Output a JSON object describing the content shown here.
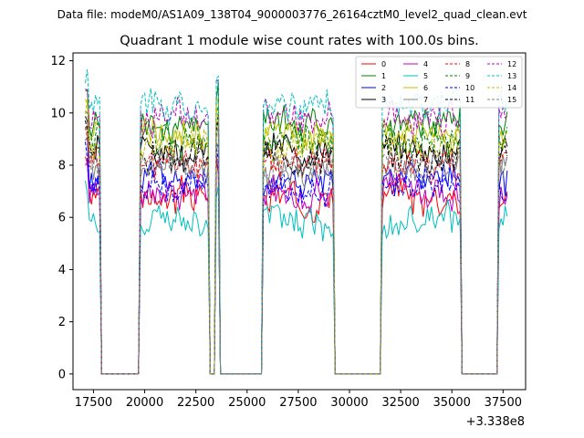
{
  "header": {
    "data_file": "Data file: modeM0/AS1A09_138T04_9000003776_26164cztM0_level2_quad_clean.evt"
  },
  "chart_data": {
    "type": "line",
    "title": "Quadrant 1 module wise count rates with 100.0s bins.",
    "xlabel": "",
    "ylabel": "",
    "x_offset_label": "+3.338e8",
    "xlim": [
      16500,
      38600
    ],
    "ylim": [
      -0.6,
      12.3
    ],
    "x_ticks": [
      17500,
      20000,
      22500,
      25000,
      27500,
      30000,
      32500,
      35000,
      37500
    ],
    "y_ticks": [
      0,
      2,
      4,
      6,
      8,
      10,
      12
    ],
    "legend_position": "top-right",
    "segments": [
      [
        17100,
        17800
      ],
      [
        19800,
        23100
      ],
      [
        23500,
        23600
      ],
      [
        25800,
        29200
      ],
      [
        31600,
        35400
      ],
      [
        37300,
        37700
      ]
    ],
    "series": [
      {
        "name": "0",
        "color": "#ff0000",
        "style": "solid",
        "base": 6.8
      },
      {
        "name": "1",
        "color": "#008000",
        "style": "solid",
        "base": 9.6
      },
      {
        "name": "2",
        "color": "#0000ff",
        "style": "solid",
        "base": 7.4
      },
      {
        "name": "3",
        "color": "#000000",
        "style": "solid",
        "base": 8.6
      },
      {
        "name": "4",
        "color": "#bf00bf",
        "style": "solid",
        "base": 7.0
      },
      {
        "name": "5",
        "color": "#00bfbf",
        "style": "solid",
        "base": 5.8
      },
      {
        "name": "6",
        "color": "#bfbf00",
        "style": "solid",
        "base": 9.2
      },
      {
        "name": "7",
        "color": "#808080",
        "style": "solid",
        "base": 7.9
      },
      {
        "name": "8",
        "color": "#ff0000",
        "style": "dashed",
        "base": 8.1
      },
      {
        "name": "9",
        "color": "#008000",
        "style": "dashed",
        "base": 9.0
      },
      {
        "name": "10",
        "color": "#0000ff",
        "style": "dashed",
        "base": 7.2
      },
      {
        "name": "11",
        "color": "#000000",
        "style": "dashed",
        "base": 8.3
      },
      {
        "name": "12",
        "color": "#bf00bf",
        "style": "dashed",
        "base": 9.8
      },
      {
        "name": "13",
        "color": "#00bfbf",
        "style": "dashed",
        "base": 10.3
      },
      {
        "name": "14",
        "color": "#bfbf00",
        "style": "dashed",
        "base": 8.8
      },
      {
        "name": "15",
        "color": "#808080",
        "style": "dashed",
        "base": 8.0
      }
    ]
  }
}
